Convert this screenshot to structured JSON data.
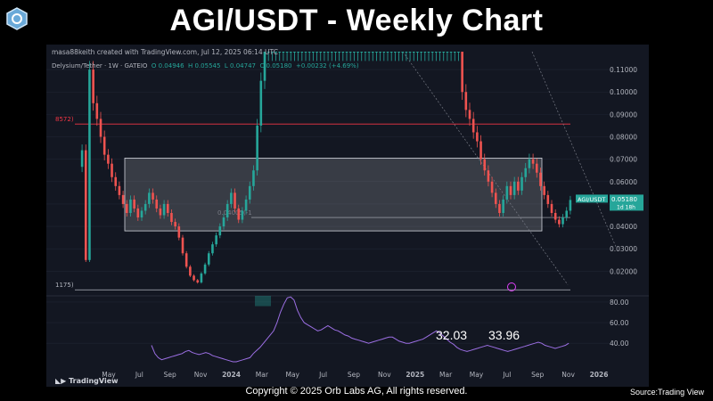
{
  "title": "AGI/USDT - Weekly Chart",
  "logo_icon": "hexagon-logo-icon",
  "header": {
    "created": "masa88keith created with TradingView.com, Jul 12, 2025 06:14 UTC",
    "symbol": "Delysium/Tether · 1W · GATEIO",
    "o": "O 0.04946",
    "h": "H 0.05545",
    "l": "L 0.04747",
    "c": "C 0.05180",
    "chg": "+0.00232 (+4.69%)"
  },
  "footer": {
    "tradingview": "TradingView",
    "copyright": "Copyright © 2025 Orb Labs AG, All rights reserved.",
    "source": "Source:Trading View"
  },
  "price_tag": {
    "symbol": "AGI/USDT",
    "price": "0.05180",
    "countdown": "1d 18h"
  },
  "colors": {
    "up": "#26a69a",
    "down": "#ef5350",
    "rsi": "#9c6fe4",
    "background": "#131722",
    "level": "#f23645"
  },
  "chart_data": {
    "type": "candlestick",
    "price_axis": {
      "ylim": [
        0.009,
        0.118
      ],
      "ticks": [
        "0.11000",
        "0.10000",
        "0.09000",
        "0.08000",
        "0.07000",
        "0.06000",
        "0.05000",
        "0.04000",
        "0.03000",
        "0.02000"
      ],
      "values": [
        0.11,
        0.1,
        0.09,
        0.08,
        0.07,
        0.06,
        0.05,
        0.04,
        0.03,
        0.02
      ]
    },
    "time_axis": {
      "labels": [
        "May",
        "Jul",
        "Sep",
        "Nov",
        "2024",
        "Mar",
        "May",
        "Jul",
        "Sep",
        "Nov",
        "2025",
        "Mar",
        "May",
        "Jul",
        "Sep",
        "Nov",
        "2026"
      ]
    },
    "level_labels": [
      "8572)",
      "1175)",
      "0.04005(-1"
    ],
    "levels": [
      0.0857,
      0.0117,
      0.044
    ],
    "box": {
      "top": 0.0705,
      "bottom": 0.038
    },
    "weekly_closes": [
      0.074,
      0.025,
      0.11,
      0.095,
      0.088,
      0.08,
      0.072,
      0.068,
      0.062,
      0.058,
      0.054,
      0.05,
      0.046,
      0.052,
      0.048,
      0.044,
      0.047,
      0.05,
      0.055,
      0.052,
      0.048,
      0.045,
      0.05,
      0.046,
      0.042,
      0.04,
      0.035,
      0.028,
      0.022,
      0.018,
      0.016,
      0.015,
      0.019,
      0.023,
      0.028,
      0.032,
      0.036,
      0.04,
      0.044,
      0.05,
      0.055,
      0.048,
      0.043,
      0.047,
      0.052,
      0.058,
      0.065,
      0.085,
      0.105,
      0.118,
      0.118,
      0.118,
      0.118,
      0.118,
      0.118,
      0.118,
      0.118,
      0.118,
      0.118,
      0.118,
      0.118,
      0.118,
      0.118,
      0.118,
      0.118,
      0.118,
      0.118,
      0.118,
      0.118,
      0.118,
      0.118,
      0.118,
      0.118,
      0.118,
      0.118,
      0.118,
      0.118,
      0.118,
      0.118,
      0.118,
      0.118,
      0.118,
      0.118,
      0.118,
      0.118,
      0.118,
      0.118,
      0.118,
      0.118,
      0.118,
      0.118,
      0.118,
      0.118,
      0.118,
      0.118,
      0.118,
      0.118,
      0.118,
      0.118,
      0.118,
      0.118,
      0.118,
      0.1,
      0.092,
      0.088,
      0.082,
      0.078,
      0.07,
      0.065,
      0.06,
      0.055,
      0.05,
      0.046,
      0.052,
      0.058,
      0.054,
      0.06,
      0.056,
      0.062,
      0.066,
      0.07,
      0.068,
      0.064,
      0.058,
      0.054,
      0.05,
      0.046,
      0.043,
      0.041,
      0.044,
      0.047,
      0.0518
    ],
    "rsi": {
      "ticks": [
        "80.00",
        "60.00",
        "40.00"
      ],
      "values_axis": [
        80,
        60,
        40
      ],
      "ylim": [
        22,
        86
      ],
      "labels": [
        "32.03",
        "33.96"
      ],
      "label_values": [
        32.03,
        33.96
      ],
      "series": [
        38,
        30,
        26,
        24,
        25,
        26,
        27,
        28,
        29,
        30,
        32,
        33,
        31,
        30,
        29,
        30,
        31,
        30,
        28,
        27,
        26,
        25,
        24,
        23,
        22,
        22,
        23,
        24,
        25,
        26,
        30,
        33,
        36,
        40,
        44,
        48,
        52,
        60,
        70,
        78,
        84,
        85,
        82,
        72,
        65,
        60,
        58,
        56,
        54,
        52,
        53,
        55,
        57,
        55,
        53,
        52,
        50,
        48,
        47,
        45,
        44,
        43,
        42,
        41,
        40,
        41,
        42,
        43,
        44,
        45,
        46,
        46,
        44,
        42,
        41,
        40,
        40,
        41,
        42,
        43,
        44,
        46,
        48,
        50,
        52,
        50,
        47,
        44,
        41,
        39,
        36,
        34,
        33,
        32,
        33,
        34,
        35,
        36,
        37,
        38,
        37,
        36,
        35,
        34,
        33,
        32,
        33,
        34,
        35,
        36,
        37,
        38,
        39,
        40,
        41,
        40,
        38,
        37,
        36,
        35,
        36,
        37,
        38,
        40
      ]
    }
  }
}
